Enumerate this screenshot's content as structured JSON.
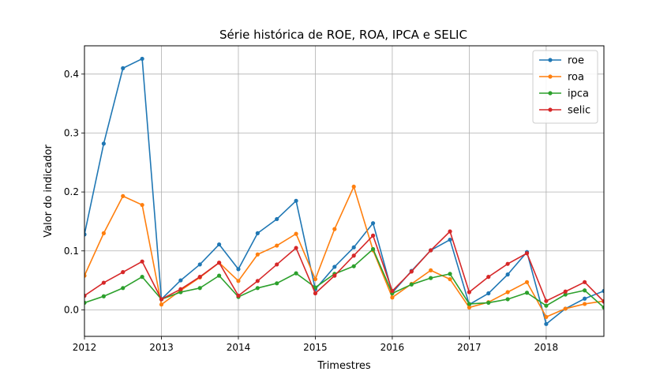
{
  "chart_data": {
    "type": "line",
    "title": "Série histórica de ROE, ROA, IPCA e SELIC",
    "xlabel": "Trimestres",
    "ylabel": "Valor do indicador",
    "xlim": [
      2012.0,
      2018.75
    ],
    "ylim": [
      -0.045,
      0.448
    ],
    "x_ticks": [
      2012,
      2013,
      2014,
      2015,
      2016,
      2017,
      2018
    ],
    "x_tick_labels": [
      "2012",
      "2013",
      "2014",
      "2015",
      "2016",
      "2017",
      "2018"
    ],
    "y_ticks": [
      0.0,
      0.1,
      0.2,
      0.3,
      0.4
    ],
    "y_tick_labels": [
      "0.0",
      "0.1",
      "0.2",
      "0.3",
      "0.4"
    ],
    "grid": true,
    "legend_position": "top-right",
    "x": [
      2012.0,
      2012.25,
      2012.5,
      2012.75,
      2013.0,
      2013.25,
      2013.5,
      2013.75,
      2014.0,
      2014.25,
      2014.5,
      2014.75,
      2015.0,
      2015.25,
      2015.5,
      2015.75,
      2016.0,
      2016.25,
      2016.5,
      2016.75,
      2017.0,
      2017.25,
      2017.5,
      2017.75,
      2018.0,
      2018.25,
      2018.5,
      2018.75
    ],
    "series": [
      {
        "name": "roe",
        "color": "#1f77b4",
        "values": [
          0.128,
          0.282,
          0.41,
          0.426,
          0.018,
          0.05,
          0.077,
          0.111,
          0.069,
          0.13,
          0.154,
          0.185,
          0.035,
          0.073,
          0.106,
          0.147,
          0.029,
          0.066,
          0.101,
          0.119,
          0.009,
          0.028,
          0.06,
          0.098,
          -0.024,
          0.002,
          0.019,
          0.032
        ]
      },
      {
        "name": "roa",
        "color": "#ff7f0e",
        "values": [
          0.058,
          0.13,
          0.193,
          0.178,
          0.009,
          0.033,
          0.055,
          0.08,
          0.049,
          0.094,
          0.109,
          0.129,
          0.052,
          0.137,
          0.209,
          0.101,
          0.021,
          0.044,
          0.067,
          0.052,
          0.004,
          0.013,
          0.03,
          0.047,
          -0.012,
          0.002,
          0.01,
          0.015
        ]
      },
      {
        "name": "ipca",
        "color": "#2ca02c",
        "values": [
          0.012,
          0.023,
          0.037,
          0.056,
          0.018,
          0.03,
          0.037,
          0.058,
          0.022,
          0.037,
          0.045,
          0.062,
          0.038,
          0.061,
          0.074,
          0.103,
          0.028,
          0.043,
          0.054,
          0.061,
          0.01,
          0.012,
          0.018,
          0.029,
          0.007,
          0.026,
          0.033,
          0.004
        ]
      },
      {
        "name": "selic",
        "color": "#d62728",
        "values": [
          0.024,
          0.046,
          0.064,
          0.082,
          0.018,
          0.035,
          0.056,
          0.08,
          0.024,
          0.049,
          0.077,
          0.105,
          0.028,
          0.058,
          0.092,
          0.126,
          0.032,
          0.065,
          0.101,
          0.133,
          0.03,
          0.056,
          0.078,
          0.096,
          0.015,
          0.031,
          0.047,
          0.014
        ]
      }
    ]
  }
}
